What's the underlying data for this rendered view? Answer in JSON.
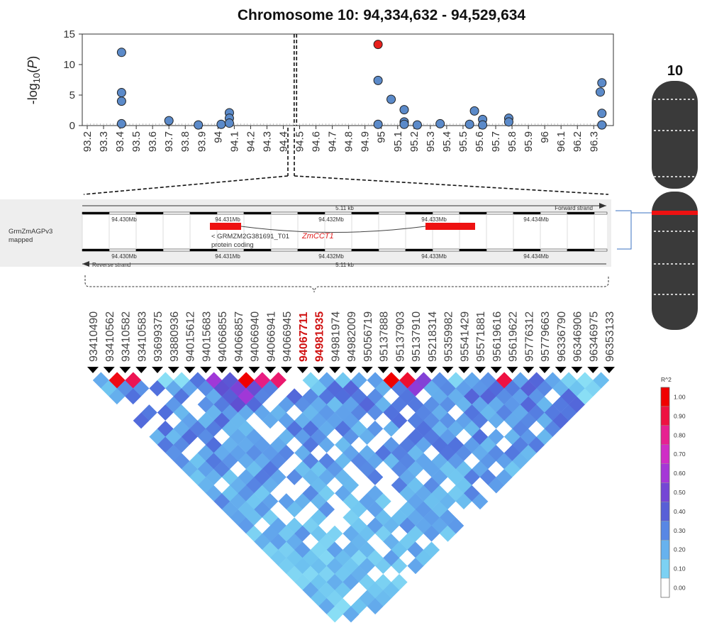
{
  "chart_data": [
    {
      "type": "scatter",
      "title": "Chromosome 10:  94,334,632 - 94,529,634",
      "ylabel": "-log10(P)",
      "ylim": [
        0,
        15
      ],
      "yticks": [
        "0",
        "5",
        "10",
        "15"
      ],
      "xlim": [
        93.2,
        96.4
      ],
      "xticks": [
        "93.2",
        "93.3",
        "93.4",
        "93.5",
        "93.6",
        "93.7",
        "93.8",
        "93.9",
        "94",
        "94.1",
        "94.2",
        "94.3",
        "94.4",
        "94.5",
        "94.6",
        "94.7",
        "94.8",
        "94.9",
        "95",
        "95.1",
        "95.2",
        "95.3",
        "95.4",
        "95.5",
        "95.6",
        "95.7",
        "95.8",
        "95.9",
        "96",
        "96.1",
        "96.2",
        "96.3"
      ],
      "xtick_values": [
        93.2,
        93.3,
        93.4,
        93.5,
        93.6,
        93.7,
        93.8,
        93.9,
        94.0,
        94.1,
        94.2,
        94.3,
        94.4,
        94.5,
        94.6,
        94.7,
        94.8,
        94.9,
        95.0,
        95.1,
        95.2,
        95.3,
        95.4,
        95.5,
        95.6,
        95.7,
        95.8,
        95.9,
        96.0,
        96.1,
        96.2,
        96.3
      ],
      "highlight_region": [
        94.4665,
        94.4815
      ],
      "points": [
        {
          "x": 93.41,
          "y": 12.0
        },
        {
          "x": 93.41,
          "y": 5.4
        },
        {
          "x": 93.41,
          "y": 4.0
        },
        {
          "x": 93.41,
          "y": 0.3
        },
        {
          "x": 93.7,
          "y": 0.8
        },
        {
          "x": 93.88,
          "y": 0.1
        },
        {
          "x": 94.02,
          "y": 0.2
        },
        {
          "x": 94.07,
          "y": 2.1
        },
        {
          "x": 94.07,
          "y": 1.2
        },
        {
          "x": 94.07,
          "y": 0.4
        },
        {
          "x": 94.98,
          "y": 13.3,
          "highlight": true
        },
        {
          "x": 94.98,
          "y": 7.4
        },
        {
          "x": 94.98,
          "y": 0.2
        },
        {
          "x": 95.06,
          "y": 4.3
        },
        {
          "x": 95.14,
          "y": 2.6
        },
        {
          "x": 95.14,
          "y": 0.6
        },
        {
          "x": 95.14,
          "y": 0.2
        },
        {
          "x": 95.22,
          "y": 0.1
        },
        {
          "x": 95.36,
          "y": 0.3
        },
        {
          "x": 95.54,
          "y": 0.2
        },
        {
          "x": 95.57,
          "y": 2.4
        },
        {
          "x": 95.62,
          "y": 1.0
        },
        {
          "x": 95.62,
          "y": 0.1
        },
        {
          "x": 95.78,
          "y": 1.2
        },
        {
          "x": 95.78,
          "y": 0.6
        },
        {
          "x": 96.34,
          "y": 5.5
        },
        {
          "x": 96.35,
          "y": 7.0
        },
        {
          "x": 96.35,
          "y": 2.0
        },
        {
          "x": 96.35,
          "y": 0.1
        }
      ],
      "colors": {
        "point": "#5b8ac9",
        "highlight": "#e8201c"
      }
    },
    {
      "type": "heatmap",
      "legend_title": "R^2",
      "legend_ticks": [
        "1.00",
        "0.90",
        "0.80",
        "0.70",
        "0.60",
        "0.50",
        "0.40",
        "0.30",
        "0.20",
        "0.10",
        "0.00"
      ],
      "snps": [
        "93410490",
        "93410562",
        "93410582",
        "93410583",
        "93699375",
        "93880936",
        "94015612",
        "94015683",
        "94066855",
        "94066857",
        "94066940",
        "94066941",
        "94066945",
        "94067711",
        "94981935",
        "94981974",
        "94982009",
        "95056719",
        "95137888",
        "95137903",
        "95137910",
        "95218314",
        "95359982",
        "95541429",
        "95571881",
        "95619616",
        "95619622",
        "95776312",
        "95779663",
        "96336790",
        "96346906",
        "96346975",
        "96353133"
      ],
      "highlighted_snps": [
        "94067711",
        "94981935"
      ],
      "blocks": [
        {
          "i0": 0,
          "i1": 3,
          "base": 0.35
        },
        {
          "i0": 4,
          "i1": 6,
          "base": 0.15
        },
        {
          "i0": 7,
          "i1": 12,
          "base": 0.48
        },
        {
          "i0": 13,
          "i1": 17,
          "base": 0.25
        },
        {
          "i0": 18,
          "i1": 21,
          "base": 0.5
        },
        {
          "i0": 22,
          "i1": 24,
          "base": 0.18
        },
        {
          "i0": 25,
          "i1": 28,
          "base": 0.38
        },
        {
          "i0": 29,
          "i1": 32,
          "base": 0.12
        }
      ],
      "strong_pairs": [
        [
          1,
          2,
          0.95
        ],
        [
          2,
          3,
          0.88
        ],
        [
          9,
          10,
          1.0
        ],
        [
          10,
          11,
          0.82
        ],
        [
          11,
          12,
          0.85
        ],
        [
          18,
          19,
          1.0
        ],
        [
          19,
          20,
          0.92
        ],
        [
          25,
          26,
          0.9
        ]
      ]
    }
  ],
  "gene_track": {
    "track_label": "GrmZmAGPv3 mapped",
    "span_label": "5.11 kb",
    "forward_label": "Forward strand",
    "reverse_label": "Reverse strand",
    "positions": [
      "94.430Mb",
      "94.431Mb",
      "94.432Mb",
      "94.433Mb",
      "94.434Mb"
    ],
    "transcript": "< GRMZM2G381691_T01",
    "biotype": "protein coding",
    "gene_name": "ZmCCT1"
  },
  "chromosome": {
    "label": "10"
  }
}
